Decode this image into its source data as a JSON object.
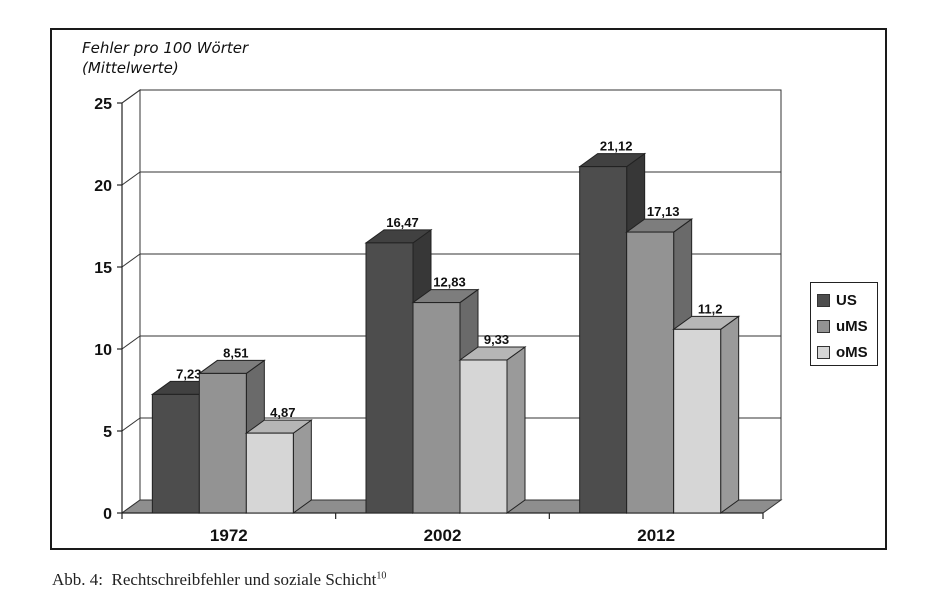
{
  "chart_data": {
    "type": "bar",
    "title": "",
    "ylabel_line1": "Fehler pro 100 Wörter",
    "ylabel_line2": "(Mittelwerte)",
    "xlabel": "",
    "categories": [
      "1972",
      "2002",
      "2012"
    ],
    "series": [
      {
        "name": "US",
        "color": "#4d4d4d",
        "values": [
          7.23,
          16.47,
          21.12
        ],
        "labels": [
          "7,23",
          "16,47",
          "21,12"
        ]
      },
      {
        "name": "uMS",
        "color": "#939393",
        "values": [
          8.51,
          12.83,
          17.13
        ],
        "labels": [
          "8,51",
          "12,83",
          "17,13"
        ]
      },
      {
        "name": "oMS",
        "color": "#d6d6d6",
        "values": [
          4.87,
          9.33,
          11.2
        ],
        "labels": [
          "4,87",
          "9,33",
          "11,2"
        ]
      }
    ],
    "ylim": [
      0,
      25
    ],
    "yticks": [
      "0",
      "5",
      "10",
      "15",
      "20",
      "25"
    ],
    "grid": true,
    "legend": "right"
  },
  "caption": {
    "prefix": "Abb. 4:",
    "text": "Rechtschreibfehler und soziale Schicht",
    "footnote": "10"
  }
}
